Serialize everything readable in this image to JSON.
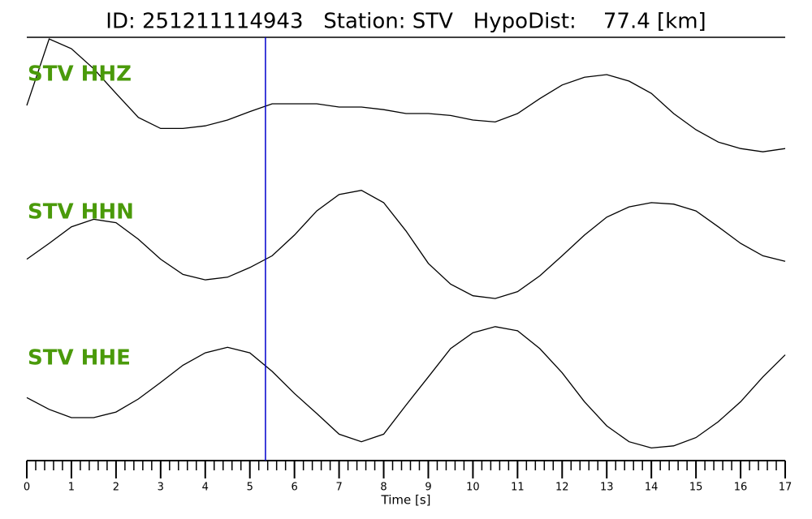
{
  "chart_data": {
    "type": "line",
    "title": "ID: 251211114943   Station: STV   HypoDist:    77.4 [km]",
    "xlabel": "Time [s]",
    "x": [
      0,
      0.5,
      1,
      1.5,
      2,
      2.5,
      3,
      3.5,
      4,
      4.5,
      5,
      5.5,
      6,
      6.5,
      7,
      7.5,
      8,
      8.5,
      9,
      9.5,
      10,
      10.5,
      11,
      11.5,
      12,
      12.5,
      13,
      13.5,
      14,
      14.5,
      15,
      15.5,
      16,
      16.5,
      17
    ],
    "xlim": [
      0,
      17
    ],
    "xticks": [
      0,
      1,
      2,
      3,
      4,
      5,
      6,
      7,
      8,
      9,
      10,
      11,
      12,
      13,
      14,
      15,
      16,
      17
    ],
    "minor_tick_step": 0.2,
    "ylim": [
      -1,
      1
    ],
    "pick_time": 5.35,
    "pick_color": "#0000cc",
    "label_color": "#4a9a0a",
    "series": [
      {
        "name": "STV HHZ",
        "color": "#000000",
        "values": [
          -0.125,
          0.9,
          0.75,
          0.44,
          0.06,
          -0.31,
          -0.48,
          -0.48,
          -0.44,
          -0.35,
          -0.22,
          -0.1,
          -0.1,
          -0.1,
          -0.15,
          -0.15,
          -0.19,
          -0.25,
          -0.25,
          -0.28,
          -0.35,
          -0.38,
          -0.25,
          -0.02,
          0.19,
          0.31,
          0.35,
          0.25,
          0.06,
          -0.25,
          -0.5,
          -0.69,
          -0.79,
          -0.84,
          -0.79
        ]
      },
      {
        "name": "STV HHN",
        "color": "#000000",
        "values": [
          -0.29,
          -0.06,
          0.18,
          0.29,
          0.24,
          0,
          -0.29,
          -0.51,
          -0.59,
          -0.55,
          -0.41,
          -0.24,
          0.06,
          0.41,
          0.65,
          0.71,
          0.53,
          0.12,
          -0.35,
          -0.65,
          -0.82,
          -0.86,
          -0.76,
          -0.53,
          -0.24,
          0.06,
          0.32,
          0.47,
          0.53,
          0.51,
          0.41,
          0.18,
          -0.06,
          -0.24,
          -0.32
        ]
      },
      {
        "name": "STV HHE",
        "color": "#000000",
        "values": [
          -0.18,
          -0.35,
          -0.47,
          -0.47,
          -0.39,
          -0.2,
          0.04,
          0.29,
          0.47,
          0.55,
          0.47,
          0.2,
          -0.12,
          -0.41,
          -0.71,
          -0.82,
          -0.71,
          -0.29,
          0.12,
          0.53,
          0.76,
          0.85,
          0.79,
          0.53,
          0.18,
          -0.24,
          -0.59,
          -0.82,
          -0.91,
          -0.88,
          -0.76,
          -0.53,
          -0.24,
          0.12,
          0.44
        ]
      }
    ]
  }
}
